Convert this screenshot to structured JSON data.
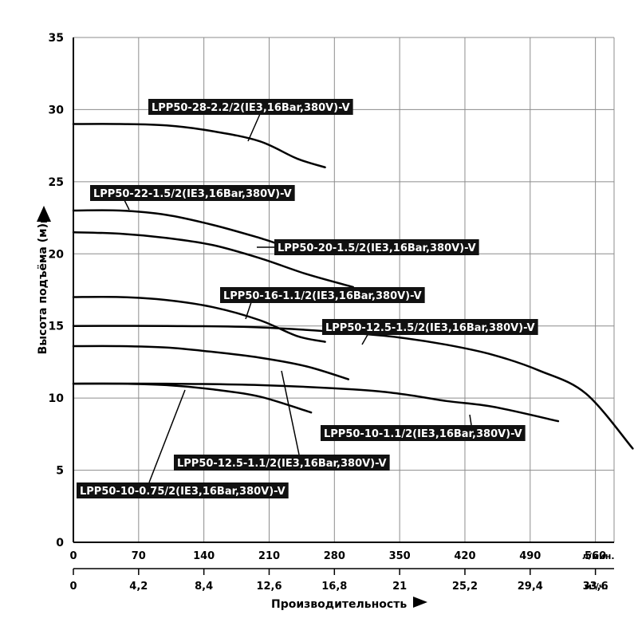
{
  "chart_data": {
    "type": "line",
    "title": "",
    "ylabel": "Высота подъёма (м)",
    "xlabel": "Производительность",
    "ylim": [
      0,
      35
    ],
    "xlim": [
      0,
      580
    ],
    "grid": true,
    "y_ticks": [
      "0",
      "5",
      "10",
      "15",
      "20",
      "25",
      "30",
      "35"
    ],
    "x_ticks_lpm": [
      "0",
      "70",
      "140",
      "210",
      "280",
      "350",
      "420",
      "490",
      "560"
    ],
    "x_ticks_m3h": [
      "0",
      "4,2",
      "8,4",
      "12,6",
      "16,8",
      "21",
      "25,2",
      "29,4",
      "33,6"
    ],
    "x_unit_lpm": "л/мин.",
    "x_unit_m3h": "м³/ч.",
    "series": [
      {
        "name": "LPP50-28-2.2/2(IE3,16Bar,380V)-V",
        "x": [
          0,
          50,
          100,
          150,
          200,
          240,
          270
        ],
        "y": [
          29,
          29,
          28.9,
          28.5,
          27.8,
          26.6,
          26
        ]
      },
      {
        "name": "LPP50-22-1.5/2(IE3,16Bar,380V)-V",
        "x": [
          0,
          50,
          100,
          150,
          200,
          240,
          255
        ],
        "y": [
          23,
          23,
          22.7,
          22,
          21.1,
          20.3,
          20.5
        ]
      },
      {
        "name": "LPP50-20-1.5/2(IE3,16Bar,380V)-V",
        "x": [
          0,
          50,
          100,
          150,
          200,
          250,
          300
        ],
        "y": [
          21.5,
          21.4,
          21.1,
          20.6,
          19.7,
          18.6,
          17.7
        ]
      },
      {
        "name": "LPP50-16-1.1/2(IE3,16Bar,380V)-V",
        "x": [
          0,
          50,
          100,
          150,
          200,
          240,
          270
        ],
        "y": [
          17,
          17,
          16.8,
          16.3,
          15.4,
          14.3,
          13.9
        ]
      },
      {
        "name": "LPP50-12.5-1.5/2(IE3,16Bar,380V)-V",
        "x": [
          0,
          100,
          200,
          300,
          350,
          400,
          450,
          500,
          550,
          600
        ],
        "y": [
          15,
          15,
          14.9,
          14.5,
          14.2,
          13.7,
          13,
          11.9,
          10.3,
          6.5
        ]
      },
      {
        "name": "LPP50-12.5-1.1/2(IE3,16Bar,380V)-V",
        "x": [
          0,
          50,
          100,
          150,
          200,
          250,
          295
        ],
        "y": [
          13.6,
          13.6,
          13.5,
          13.2,
          12.8,
          12.2,
          11.3
        ]
      },
      {
        "name": "LPP50-10-1.1/2(IE3,16Bar,380V)-V",
        "x": [
          0,
          100,
          200,
          300,
          350,
          400,
          450,
          520
        ],
        "y": [
          11,
          11,
          10.9,
          10.6,
          10.3,
          9.8,
          9.4,
          8.4
        ]
      },
      {
        "name": "LPP50-10-0.75/2(IE3,16Bar,380V)-V",
        "x": [
          0,
          50,
          100,
          150,
          200,
          255
        ],
        "y": [
          11,
          11,
          10.9,
          10.6,
          10.1,
          9
        ]
      }
    ]
  }
}
